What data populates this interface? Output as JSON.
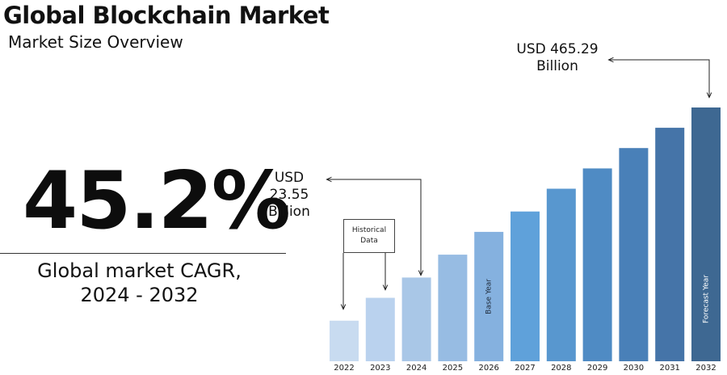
{
  "header": {
    "title": "Global Blockchain Market",
    "subtitle": "Market Size Overview"
  },
  "cagr": {
    "value": "45.2%",
    "label_line1": "Global market CAGR,",
    "label_line2": "2024 - 2032"
  },
  "callouts": {
    "first": {
      "line1": "USD",
      "line2": "23.55",
      "line3": "Billion"
    },
    "last": {
      "line1": "USD 465.29",
      "line2": "Billion"
    },
    "historical": {
      "line1": "Historical",
      "line2": "Data"
    }
  },
  "chart_data": {
    "type": "bar",
    "categories": [
      "2022",
      "2023",
      "2024",
      "2025",
      "2026",
      "2027",
      "2028",
      "2029",
      "2030",
      "2031",
      "2032"
    ],
    "values": [
      null,
      null,
      23.55,
      null,
      null,
      null,
      null,
      null,
      null,
      null,
      465.29
    ],
    "relative_heights": [
      0.16,
      0.25,
      0.33,
      0.42,
      0.51,
      0.59,
      0.68,
      0.76,
      0.84,
      0.92,
      1.0
    ],
    "bar_colors": [
      "#c8dbf0",
      "#bad2ee",
      "#a9c7e7",
      "#97bce3",
      "#85b1df",
      "#5fa1da",
      "#5897cf",
      "#4f8bc4",
      "#4980b8",
      "#4574a8",
      "#3e6892"
    ],
    "bar_labels": {
      "2026": "Base Year",
      "2032": "Forecast Year"
    },
    "units": "USD Billion",
    "grid": false
  }
}
